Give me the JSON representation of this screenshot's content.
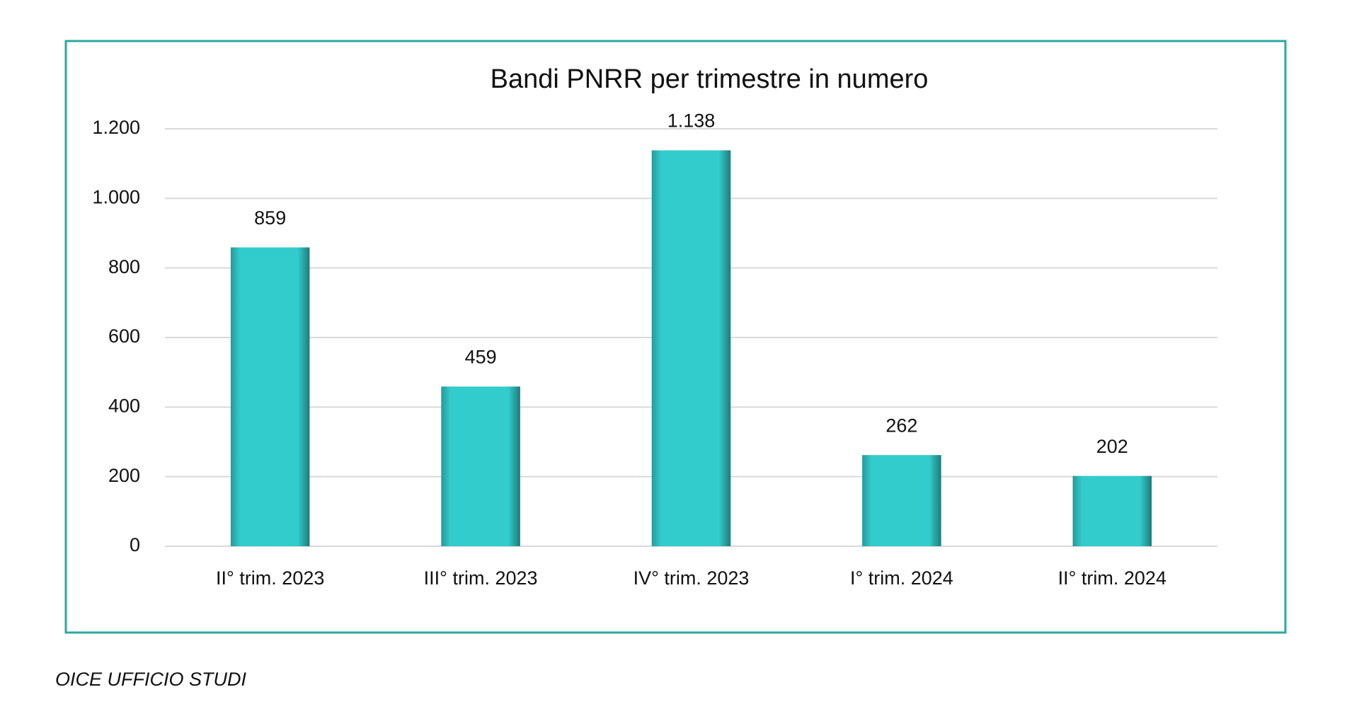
{
  "chart_data": {
    "type": "bar",
    "title": "Bandi PNRR per trimestre in numero",
    "categories": [
      "II° trim. 2023",
      "III° trim. 2023",
      "IV° trim. 2023",
      "I° trim. 2024",
      "II° trim. 2024"
    ],
    "values": [
      859,
      459,
      1138,
      262,
      202
    ],
    "value_labels": [
      "859",
      "459",
      "1.138",
      "262",
      "202"
    ],
    "color": "#33cccc",
    "ylim": [
      0,
      1200
    ],
    "yticks": [
      0,
      200,
      400,
      600,
      800,
      {
        "value": 1000,
        "label": "1.000"
      },
      {
        "value": 1200,
        "label": "1.200"
      }
    ],
    "grid": true,
    "source": "OICE UFFICIO STUDI"
  }
}
